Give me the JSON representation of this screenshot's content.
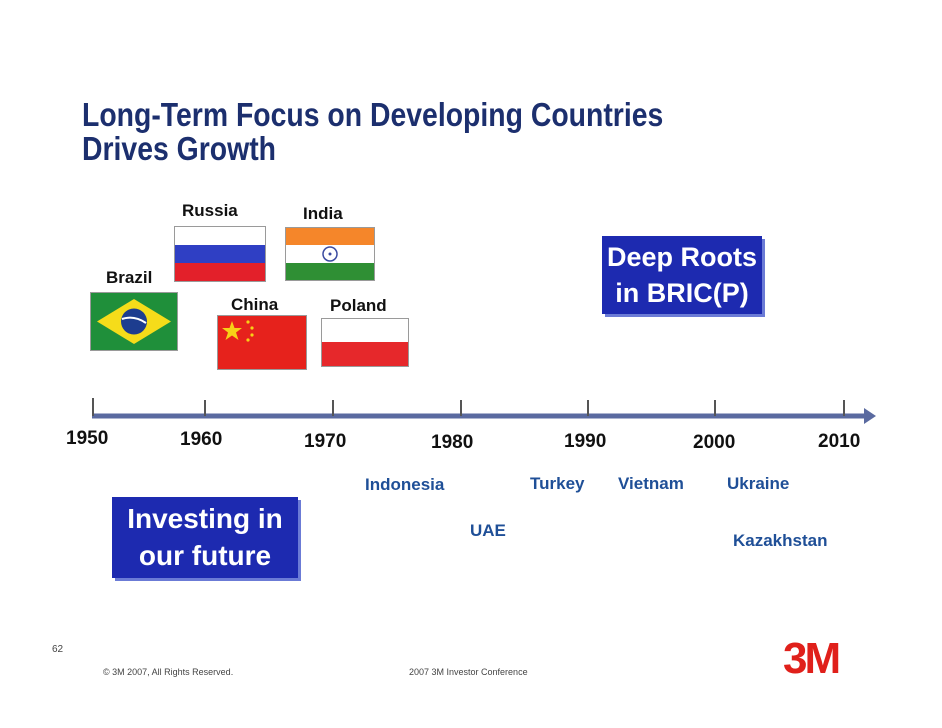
{
  "title": "Long-Term Focus on Developing Countries Drives Growth",
  "countries_before_1980": {
    "brazil": "Brazil",
    "russia": "Russia",
    "india": "India",
    "china": "China",
    "poland": "Poland"
  },
  "callout_bric": [
    "Deep Roots",
    "in BRIC(P)"
  ],
  "callout_future": [
    "Investing in",
    "our future"
  ],
  "timeline_years": [
    "1950",
    "1960",
    "1970",
    "1980",
    "1990",
    "2000",
    "2010"
  ],
  "later_countries": {
    "indonesia": "Indonesia",
    "turkey": "Turkey",
    "vietnam": "Vietnam",
    "ukraine": "Ukraine",
    "uae": "UAE",
    "kazakhstan": "Kazakhstan"
  },
  "slide_number": "62",
  "footer": {
    "copyright": "© 3M 2007, All Rights Reserved.",
    "event": "2007 3M Investor Conference"
  },
  "logo": "3M",
  "colors": {
    "title": "#1c2f6e",
    "callout_bg": "#1d2ab0",
    "country_text_blue": "#1f4f97",
    "logo_red": "#e0201b",
    "timeline": "#5a6aa0"
  },
  "flags": [
    "brazil-flag",
    "russia-flag",
    "india-flag",
    "china-flag",
    "poland-flag"
  ]
}
